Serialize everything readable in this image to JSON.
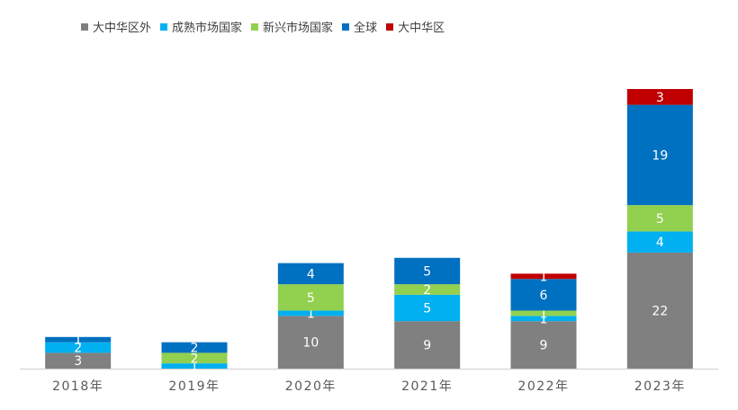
{
  "chart_data": {
    "type": "bar",
    "stacked": true,
    "categories": [
      "2018年",
      "2019年",
      "2020年",
      "2021年",
      "2022年",
      "2023年"
    ],
    "series": [
      {
        "name": "大中华区外",
        "color": "#808080",
        "values": [
          3,
          0,
          10,
          9,
          9,
          22
        ],
        "labels": [
          "3",
          "",
          "10",
          "9",
          "9",
          "22"
        ]
      },
      {
        "name": "成熟市场国家",
        "color": "#00b0f0",
        "values": [
          2,
          1,
          1,
          5,
          1,
          4
        ],
        "labels": [
          "2",
          "1",
          "1",
          "5",
          "1",
          "4"
        ]
      },
      {
        "name": "新兴市场国家",
        "color": "#92d050",
        "values": [
          0,
          2,
          5,
          2,
          1,
          5
        ],
        "labels": [
          "",
          "2",
          "5",
          "2",
          "1",
          "5"
        ]
      },
      {
        "name": "全球",
        "color": "#0070c0",
        "values": [
          1,
          2,
          4,
          5,
          6,
          19
        ],
        "labels": [
          "1",
          "2",
          "4",
          "5",
          "6",
          "19"
        ]
      },
      {
        "name": "大中华区",
        "color": "#c00000",
        "values": [
          0,
          0,
          0,
          0,
          1,
          3
        ],
        "labels": [
          "",
          "",
          "",
          "",
          "1",
          "3"
        ]
      }
    ],
    "ylim": [
      0,
      54
    ],
    "legend_position": "top-left",
    "grid": false,
    "title": "",
    "xlabel": "",
    "ylabel": ""
  }
}
